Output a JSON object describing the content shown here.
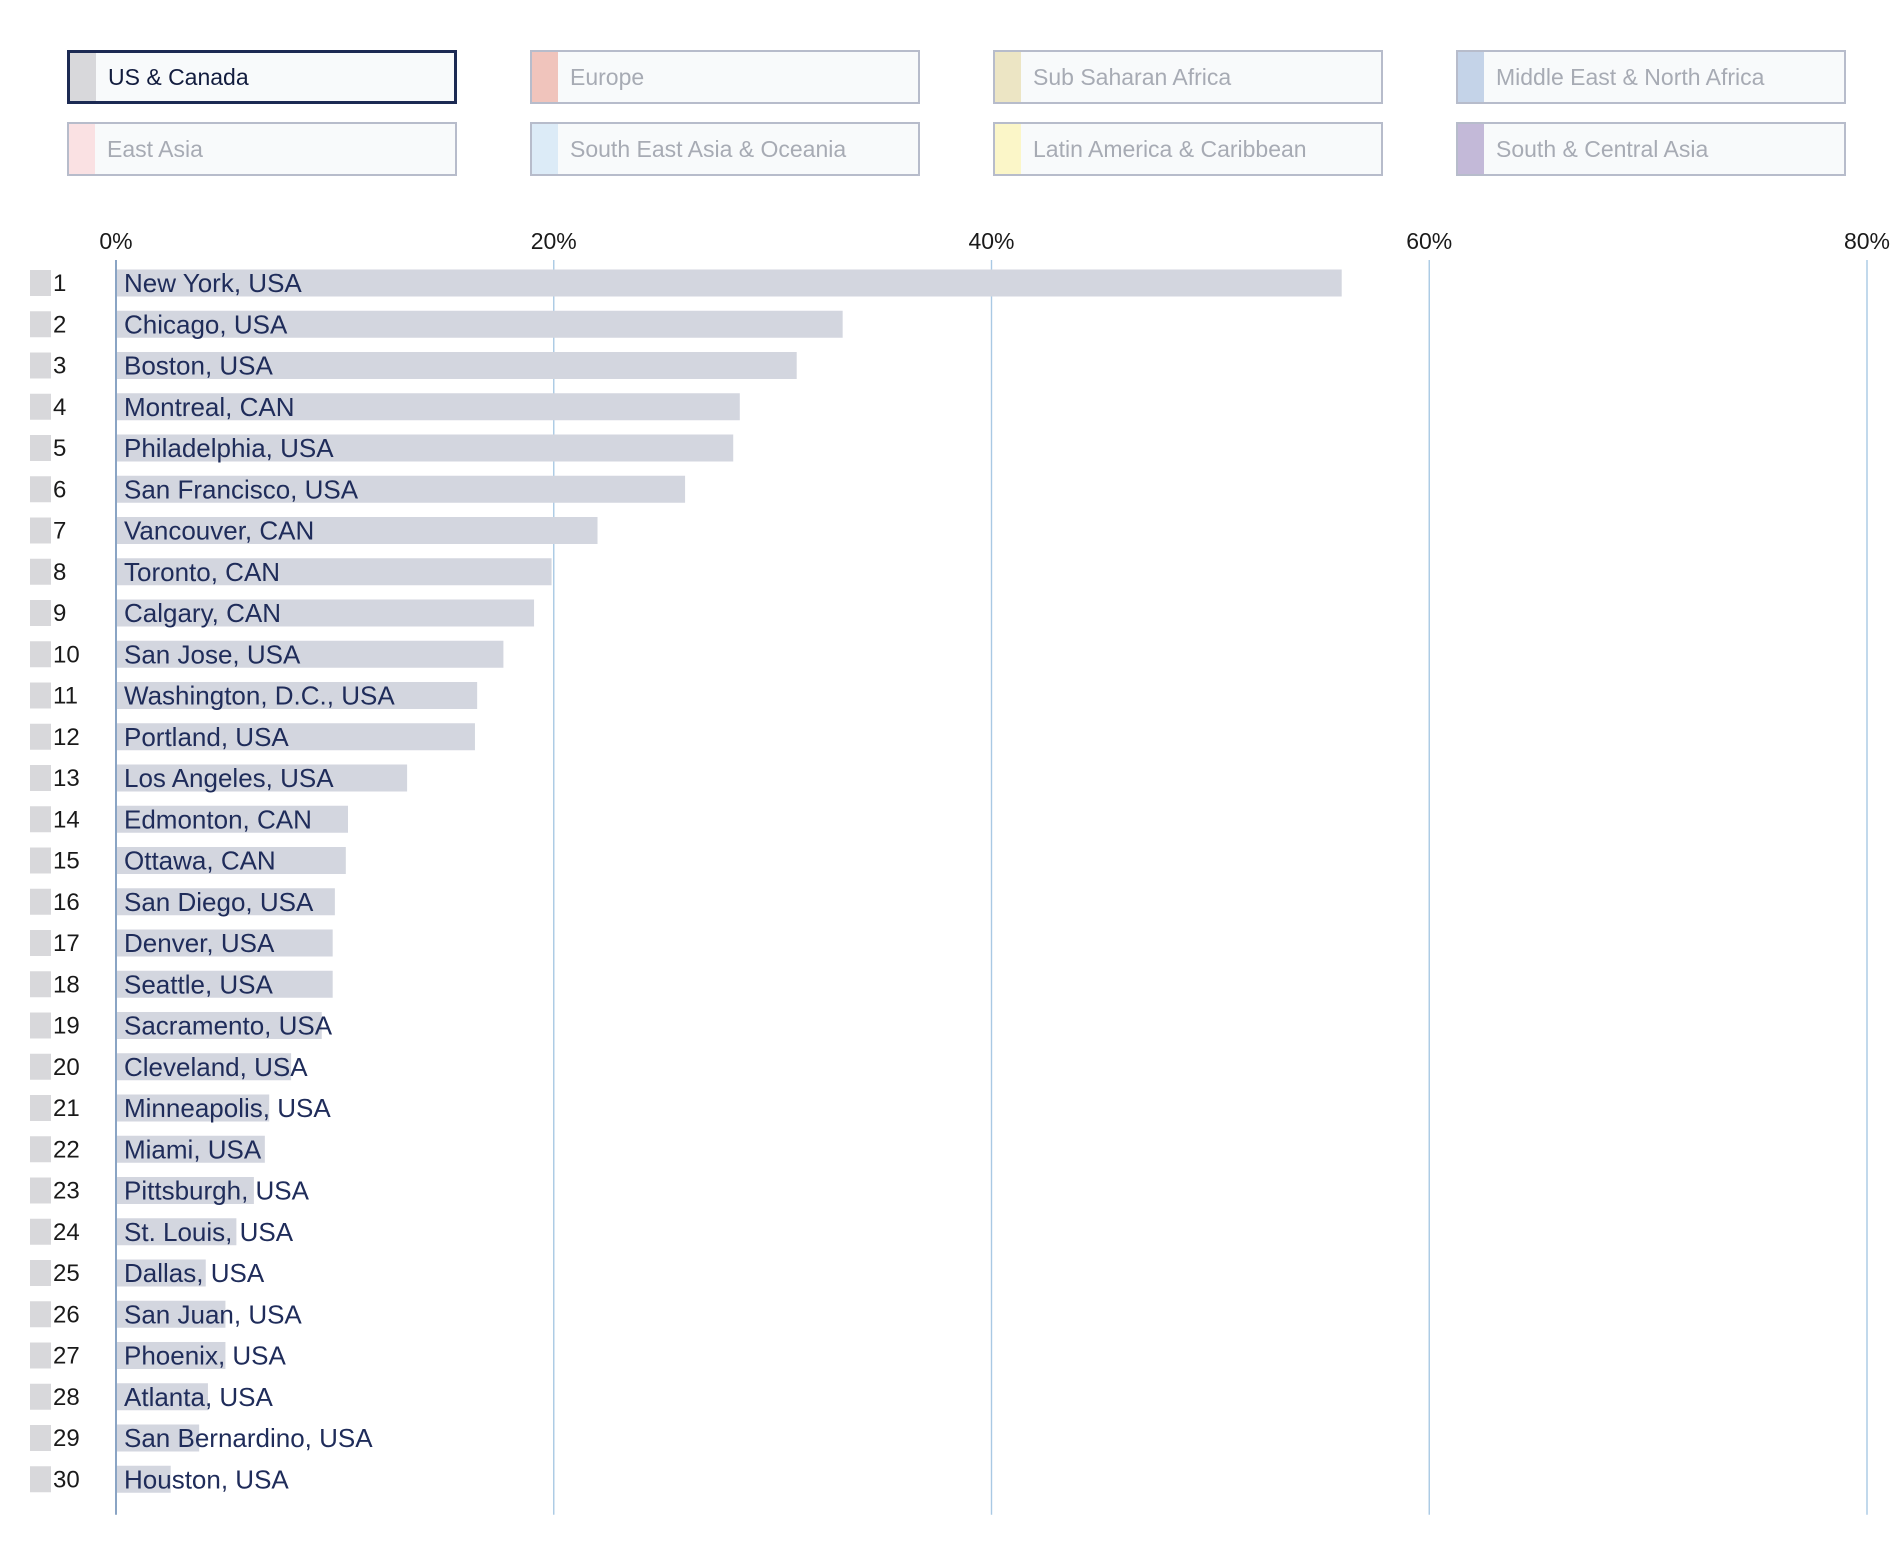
{
  "legend": {
    "items": [
      {
        "label": "US & Canada",
        "color": "#d8d8db",
        "active": true
      },
      {
        "label": "Europe",
        "color": "#f0c4bc",
        "active": false
      },
      {
        "label": "Sub Saharan Africa",
        "color": "#ece5c4",
        "active": false
      },
      {
        "label": "Middle East & North Africa",
        "color": "#c4d3e8",
        "active": false
      },
      {
        "label": "East Asia",
        "color": "#fae1e3",
        "active": false
      },
      {
        "label": "South East Asia & Oceania",
        "color": "#dcebf7",
        "active": false
      },
      {
        "label": "Latin America & Caribbean",
        "color": "#fbf6c8",
        "active": false
      },
      {
        "label": "South & Central Asia",
        "color": "#c3b9d8",
        "active": false
      }
    ]
  },
  "chart_data": {
    "type": "bar",
    "orientation": "horizontal",
    "x_ticks": [
      "0%",
      "20%",
      "40%",
      "60%",
      "80%"
    ],
    "x_tick_values": [
      0,
      20,
      40,
      60,
      80
    ],
    "xlim": [
      0,
      80
    ],
    "grid": true,
    "legend_position": "top",
    "bar_color": "#d3d6df",
    "grid_color": "#a9c9e4",
    "axis_color": "#8aa4c4",
    "label_color": "#1f2c5a",
    "rank_swatch_color": "#d8d8db",
    "categories": [
      "New York, USA",
      "Chicago, USA",
      "Boston, USA",
      "Montreal, CAN",
      "Philadelphia, USA",
      "San Francisco, USA",
      "Vancouver, CAN",
      "Toronto, CAN",
      "Calgary, CAN",
      "San Jose, USA",
      "Washington, D.C., USA",
      "Portland, USA",
      "Los Angeles, USA",
      "Edmonton, CAN",
      "Ottawa, CAN",
      "San Diego, USA",
      "Denver, USA",
      "Seattle, USA",
      "Sacramento, USA",
      "Cleveland, USA",
      "Minneapolis, USA",
      "Miami, USA",
      "Pittsburgh, USA",
      "St. Louis, USA",
      "Dallas, USA",
      "San Juan, USA",
      "Phoenix, USA",
      "Atlanta, USA",
      "San Bernardino, USA",
      "Houston, USA"
    ],
    "ranks": [
      "1",
      "2",
      "3",
      "4",
      "5",
      "6",
      "7",
      "8",
      "9",
      "10",
      "11",
      "12",
      "13",
      "14",
      "15",
      "16",
      "17",
      "18",
      "19",
      "20",
      "21",
      "22",
      "23",
      "24",
      "25",
      "26",
      "27",
      "28",
      "29",
      "30"
    ],
    "values": [
      56.0,
      33.2,
      31.1,
      28.5,
      28.2,
      26.0,
      22.0,
      19.9,
      19.1,
      17.7,
      16.5,
      16.4,
      13.3,
      10.6,
      10.5,
      10.0,
      9.9,
      9.9,
      9.4,
      8.0,
      7.0,
      6.8,
      6.3,
      5.5,
      4.1,
      5.0,
      5.0,
      4.2,
      3.8,
      2.5
    ]
  }
}
